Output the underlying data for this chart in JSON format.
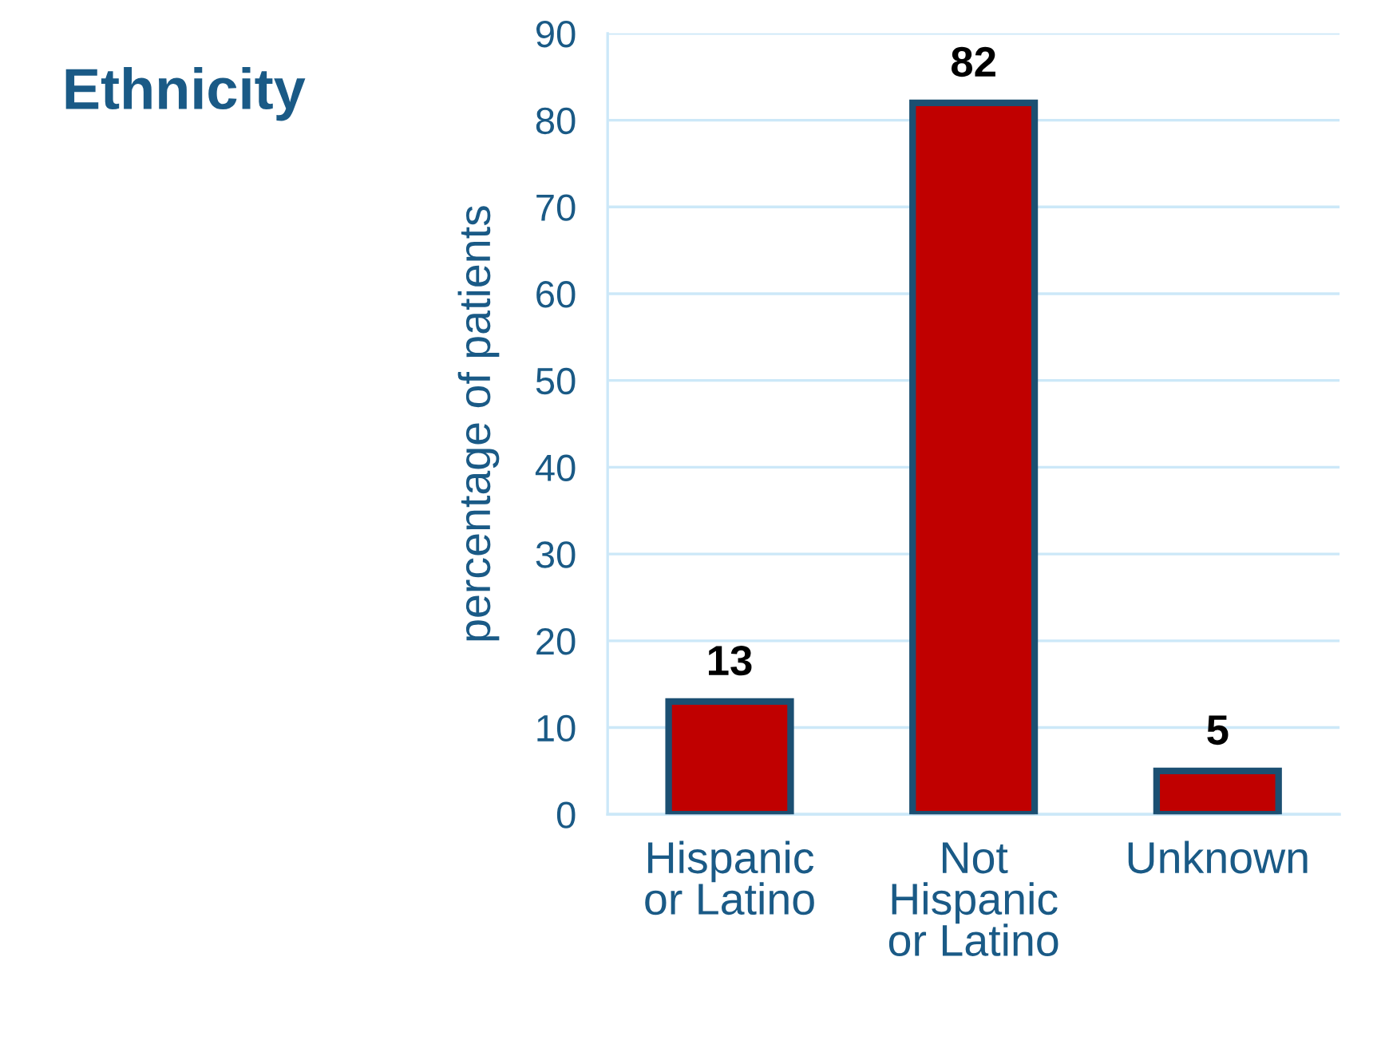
{
  "chart_data": {
    "type": "bar",
    "title": "Ethnicity",
    "ylabel": "percentage of patients",
    "categories": [
      "Hispanic\nor Latino",
      "Not\nHispanic\nor Latino",
      "Unknown"
    ],
    "values": [
      13,
      82,
      5
    ],
    "color": "#c00000",
    "ylim": [
      0,
      90
    ],
    "yticks": [
      0,
      10,
      20,
      30,
      40,
      50,
      60,
      70,
      80,
      90
    ],
    "grid": "y",
    "data_labels": true
  }
}
